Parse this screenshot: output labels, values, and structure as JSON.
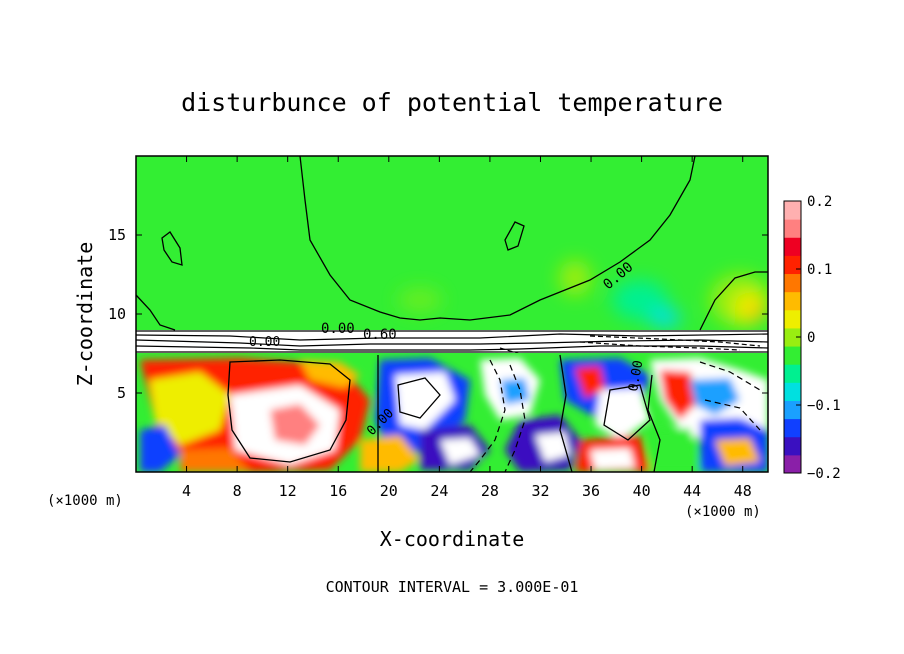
{
  "chart_data": {
    "type": "heatmap",
    "title": "disturbunce of potential temperature",
    "xlabel": "X-coordinate",
    "ylabel": "Z-coordinate",
    "x_unit_left": "(×1000 m)",
    "x_unit_right": "(×1000 m)",
    "xlim": [
      0,
      50
    ],
    "ylim": [
      0,
      20
    ],
    "x_ticks": [
      4,
      8,
      12,
      16,
      20,
      24,
      28,
      32,
      36,
      40,
      44,
      48
    ],
    "y_ticks": [
      5,
      10,
      15
    ],
    "colorbar": {
      "min": -0.2,
      "max": 0.2,
      "tick_values": [
        0.2,
        0.1,
        0,
        -0.1,
        -0.2
      ],
      "tick_labels": [
        "0.2",
        "0.1",
        "0",
        "−0.1",
        "−0.2"
      ],
      "colors": [
        "#8a1fa8",
        "#3a10c0",
        "#1040ff",
        "#1aa0ff",
        "#00e0e0",
        "#00f090",
        "#33ee33",
        "#99ee11",
        "#eeee00",
        "#ffbb00",
        "#ff7700",
        "#ff2200",
        "#ee0022",
        "#ff8080",
        "#ffb0b0"
      ]
    },
    "contour_labels": [
      {
        "text": "0.00",
        "x": 15.8,
        "z": 9.1
      },
      {
        "text": "0.60",
        "x": 19.3,
        "z": 8.5
      },
      {
        "text": "0.00",
        "x": 9.8,
        "z": 8.2
      },
      {
        "text": "0.00",
        "x": 37.9,
        "z": 12.6
      },
      {
        "text": "0.00",
        "x": 19.5,
        "z": 3.4
      },
      {
        "text": "0.00",
        "x": 39.8,
        "z": 6.0
      }
    ],
    "contour_interval_label": "CONTOUR INTERVAL = 3.000E-01",
    "grid": false
  }
}
